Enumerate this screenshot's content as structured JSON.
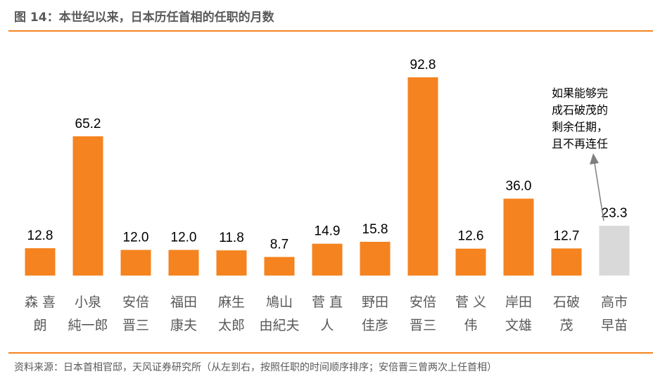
{
  "title": "图 14：本世纪以来，日本历任首相的任职的月数",
  "source": "资料来源：日本首相官邸，天风证券研究所（从左到右，按照任职的时间顺序排序；安倍晋三曾两次上任首相）",
  "chart_data": {
    "type": "bar",
    "categories": [
      [
        "森 喜",
        "朗"
      ],
      [
        "小泉",
        "純一郎"
      ],
      [
        "安倍",
        "晋三"
      ],
      [
        "福田",
        "康夫"
      ],
      [
        "麻生",
        "太郎"
      ],
      [
        "鳩山",
        "由紀夫"
      ],
      [
        "菅 直",
        "人"
      ],
      [
        "野田",
        "佳彦"
      ],
      [
        "安倍",
        "晋三"
      ],
      [
        "菅 义",
        "伟"
      ],
      [
        "岸田",
        "文雄"
      ],
      [
        "石破",
        "茂"
      ],
      [
        "高市",
        "早苗"
      ]
    ],
    "values": [
      12.8,
      65.2,
      12.0,
      12.0,
      11.8,
      8.7,
      14.9,
      15.8,
      92.8,
      12.6,
      36.0,
      12.7,
      23.3
    ],
    "data_labels": [
      "12.8",
      "65.2",
      "12.0",
      "12.0",
      "11.8",
      "8.7",
      "14.9",
      "15.8",
      "92.8",
      "12.6",
      "36.0",
      "12.7",
      "23.3"
    ],
    "highlight_index": 12,
    "colors": {
      "bar": "#f5831f",
      "highlight": "#d9d9d9",
      "rule": "#f5831f"
    },
    "annotation": {
      "lines": [
        "如果能够完",
        "成石破茂的",
        "剩余任期，",
        "且不再连任"
      ],
      "target_index": 12
    },
    "grid": false
  }
}
